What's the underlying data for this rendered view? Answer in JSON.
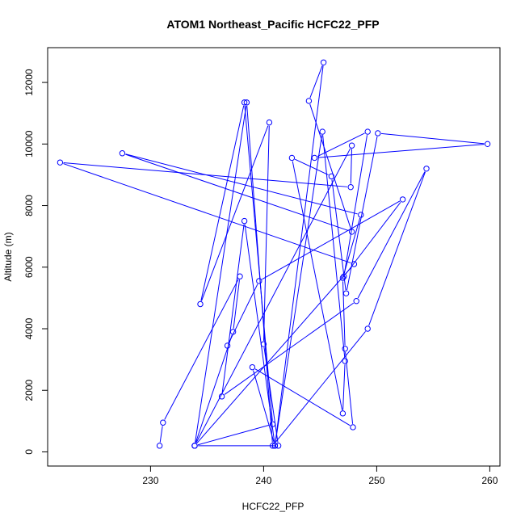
{
  "chart_data": {
    "type": "line",
    "title": "ATOM1 Northeast_Pacific HCFC22_PFP",
    "xlabel": "HCFC22_PFP",
    "ylabel": "Altitude (m)",
    "xlim": [
      220.9,
      260.9
    ],
    "ylim": [
      -460,
      13130
    ],
    "xticks": [
      230,
      240,
      250,
      260
    ],
    "yticks": [
      0,
      2000,
      4000,
      6000,
      8000,
      10000,
      12000
    ],
    "grid": false,
    "color": "#0000ff",
    "markers": "open-circle",
    "series": [
      {
        "x": [
          230.8,
          231.1,
          237.9,
          237.3,
          233.9,
          241.3,
          240.0,
          240.5,
          234.4,
          238.3,
          240.8,
          233.9,
          247.8,
          247.7,
          222.0,
          248.0,
          233.9,
          238.5,
          240.8,
          249.2,
          254.4,
          248.2,
          236.3,
          238.3,
          241.0,
          245.3,
          244.0,
          247.8,
          227.5,
          248.6,
          247.0,
          247.2,
          247.9,
          239.0,
          241.0,
          245.2,
          247.2,
          247.0,
          242.5,
          246.0,
          247.3,
          250.1,
          259.8,
          244.5,
          249.2,
          247.1,
          252.3,
          239.6,
          236.8
        ],
        "y": [
          200,
          950,
          5700,
          3900,
          200,
          200,
          3500,
          10700,
          4800,
          11350,
          900,
          200,
          9950,
          8600,
          9400,
          6100,
          200,
          11350,
          200,
          4000,
          9200,
          4900,
          1800,
          7500,
          200,
          12650,
          11400,
          7150,
          9700,
          7700,
          5650,
          3350,
          800,
          2750,
          200,
          10400,
          2950,
          1250,
          9550,
          8950,
          5150,
          10350,
          10000,
          9550,
          10400,
          5700,
          8200,
          5550,
          3450
        ]
      }
    ]
  }
}
